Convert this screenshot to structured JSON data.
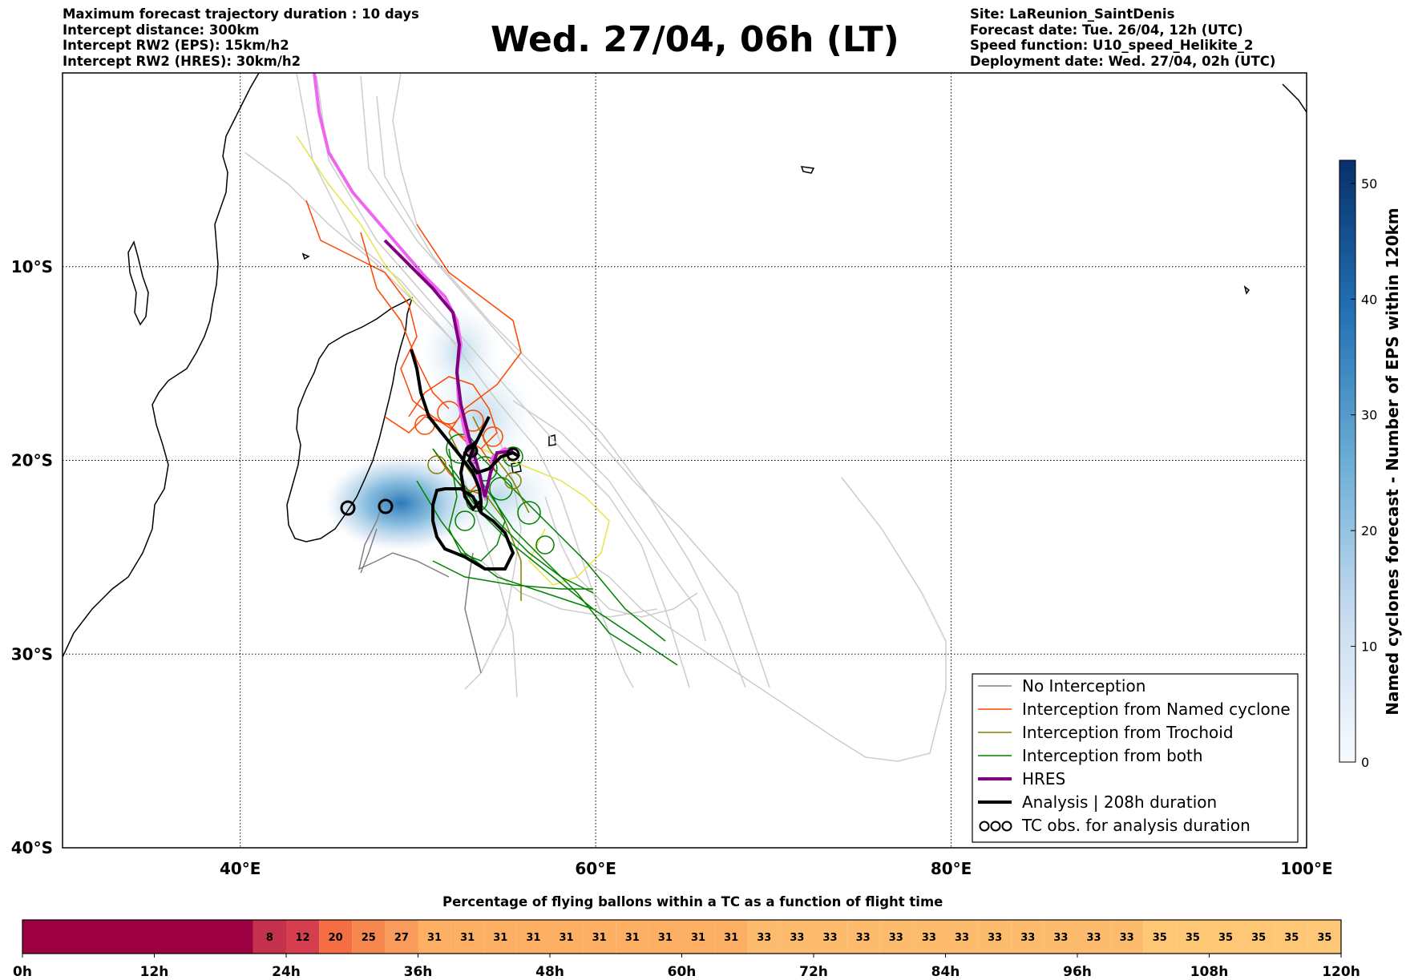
{
  "info_left": [
    "Maximum forecast trajectory duration : 10 days",
    "Intercept distance: 300km",
    "Intercept RW2 (EPS):  15km/h2",
    "Intercept RW2 (HRES): 30km/h2"
  ],
  "info_right": [
    "Site: LaReunion_SaintDenis",
    "Forecast date: Tue. 26/04, 12h (UTC)",
    "Speed function: U10_speed_Helikite_2",
    "Deployment date: Wed. 27/04, 02h (UTC)"
  ],
  "title": "Wed. 27/04, 06h (LT)",
  "map": {
    "lon_range": [
      30,
      100
    ],
    "lat_range": [
      -40,
      0
    ],
    "lon_ticks": [
      {
        "value": 40,
        "label": "40°E"
      },
      {
        "value": 60,
        "label": "60°E"
      },
      {
        "value": 80,
        "label": "80°E"
      },
      {
        "value": 100,
        "label": "100°E"
      }
    ],
    "lat_ticks": [
      {
        "value": -10,
        "label": "10°S"
      },
      {
        "value": -20,
        "label": "20°S"
      },
      {
        "value": -30,
        "label": "30°S"
      },
      {
        "value": -40,
        "label": "40°S"
      }
    ],
    "grid": "dotted",
    "colors": {
      "no_interception": "#808080",
      "named_cyclone": "#ff4500",
      "trochoid": "#808000",
      "both": "#008000",
      "hres": "#800080",
      "analysis": "#000000",
      "other_members": "#cccccc"
    },
    "legend": [
      {
        "label": "No Interception",
        "color": "#808080",
        "style": "thin"
      },
      {
        "label": "Interception from Named cyclone",
        "color": "#ff4500",
        "style": "thin"
      },
      {
        "label": "Interception from Trochoid",
        "color": "#808000",
        "style": "thin"
      },
      {
        "label": "Interception from both",
        "color": "#008000",
        "style": "thin"
      },
      {
        "label": "HRES",
        "color": "#800080",
        "style": "thick"
      },
      {
        "label": "Analysis | 208h duration",
        "color": "#000000",
        "style": "thick"
      },
      {
        "label": "TC obs. for analysis duration",
        "color": "#000000",
        "style": "symbol"
      }
    ]
  },
  "colorbar": {
    "label": "Named cyclones forecast - Number of EPS within 120km",
    "min": 0,
    "max": 52,
    "ticks": [
      0,
      10,
      20,
      30,
      40,
      50
    ],
    "colormap": "Blues"
  },
  "flight_bar": {
    "title": "Percentage of flying ballons within a TC as a function of flight time",
    "axis_labels": [
      "0h",
      "12h",
      "24h",
      "36h",
      "48h",
      "60h",
      "72h",
      "84h",
      "96h",
      "108h",
      "120h"
    ],
    "max_hours": 120,
    "segments": [
      {
        "from": 0,
        "to": 21,
        "value": "",
        "color": "#9e0142"
      },
      {
        "from": 21,
        "to": 24,
        "value": "8",
        "color": "#c4314d"
      },
      {
        "from": 24,
        "to": 27,
        "value": "12",
        "color": "#d53e4f"
      },
      {
        "from": 27,
        "to": 30,
        "value": "20",
        "color": "#f46d43"
      },
      {
        "from": 30,
        "to": 33,
        "value": "25",
        "color": "#f6874e"
      },
      {
        "from": 33,
        "to": 36,
        "value": "27",
        "color": "#f99b5a"
      },
      {
        "from": 36,
        "to": 39,
        "value": "31",
        "color": "#fdb063"
      },
      {
        "from": 39,
        "to": 42,
        "value": "31",
        "color": "#fdb063"
      },
      {
        "from": 42,
        "to": 45,
        "value": "31",
        "color": "#fdb063"
      },
      {
        "from": 45,
        "to": 48,
        "value": "31",
        "color": "#fdb063"
      },
      {
        "from": 48,
        "to": 51,
        "value": "31",
        "color": "#fdb063"
      },
      {
        "from": 51,
        "to": 54,
        "value": "31",
        "color": "#fdb063"
      },
      {
        "from": 54,
        "to": 57,
        "value": "31",
        "color": "#fdb063"
      },
      {
        "from": 57,
        "to": 60,
        "value": "31",
        "color": "#fdb063"
      },
      {
        "from": 60,
        "to": 63,
        "value": "31",
        "color": "#fdb063"
      },
      {
        "from": 63,
        "to": 66,
        "value": "31",
        "color": "#fdb063"
      },
      {
        "from": 66,
        "to": 69,
        "value": "33",
        "color": "#fdbc6d"
      },
      {
        "from": 69,
        "to": 72,
        "value": "33",
        "color": "#fdbc6d"
      },
      {
        "from": 72,
        "to": 75,
        "value": "33",
        "color": "#fdbc6d"
      },
      {
        "from": 75,
        "to": 78,
        "value": "33",
        "color": "#fdbc6d"
      },
      {
        "from": 78,
        "to": 81,
        "value": "33",
        "color": "#fdbc6d"
      },
      {
        "from": 81,
        "to": 84,
        "value": "33",
        "color": "#fdbc6d"
      },
      {
        "from": 84,
        "to": 87,
        "value": "33",
        "color": "#fdbc6d"
      },
      {
        "from": 87,
        "to": 90,
        "value": "33",
        "color": "#fdbc6d"
      },
      {
        "from": 90,
        "to": 93,
        "value": "33",
        "color": "#fdbc6d"
      },
      {
        "from": 93,
        "to": 96,
        "value": "33",
        "color": "#fdbc6d"
      },
      {
        "from": 96,
        "to": 99,
        "value": "33",
        "color": "#fdbc6d"
      },
      {
        "from": 99,
        "to": 102,
        "value": "33",
        "color": "#fdbc6d"
      },
      {
        "from": 102,
        "to": 105,
        "value": "35",
        "color": "#fdc775"
      },
      {
        "from": 105,
        "to": 108,
        "value": "35",
        "color": "#fdc775"
      },
      {
        "from": 108,
        "to": 111,
        "value": "35",
        "color": "#fdc775"
      },
      {
        "from": 111,
        "to": 114,
        "value": "35",
        "color": "#fdc775"
      },
      {
        "from": 114,
        "to": 117,
        "value": "35",
        "color": "#fdc775"
      },
      {
        "from": 117,
        "to": 120,
        "value": "35",
        "color": "#fdc775"
      }
    ]
  }
}
